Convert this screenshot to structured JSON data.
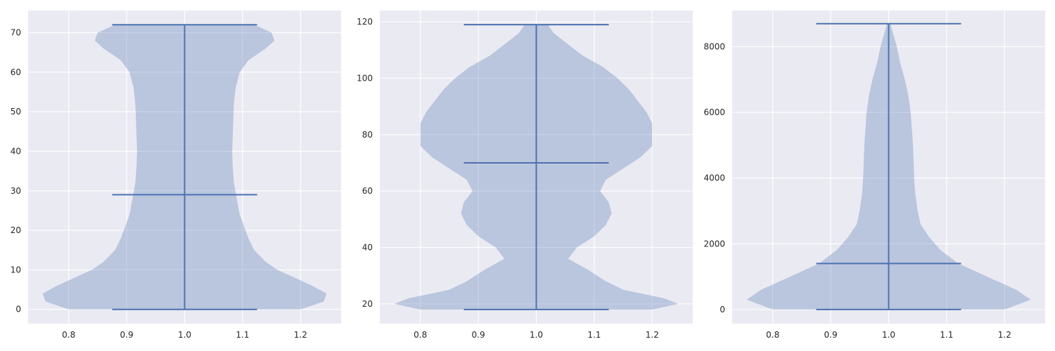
{
  "colors": {
    "axes_background": "#eaeaf2",
    "grid": "#ffffff",
    "violin": "#4c72b0",
    "text": "#262626"
  },
  "chart_data": [
    {
      "type": "violin",
      "position": 1.0,
      "xlim": [
        0.73,
        1.27
      ],
      "ylim": [
        -3.6,
        75.6
      ],
      "x_ticks": [
        "0.8",
        "0.9",
        "1.0",
        "1.1",
        "1.2"
      ],
      "y_ticks": [
        "0",
        "10",
        "20",
        "30",
        "40",
        "50",
        "60",
        "70"
      ],
      "grid": true,
      "min": 0,
      "max": 72,
      "median": 29,
      "median_shown": true,
      "density_profile": [
        [
          0,
          0.2
        ],
        [
          2,
          0.24
        ],
        [
          4,
          0.245
        ],
        [
          6,
          0.22
        ],
        [
          8,
          0.19
        ],
        [
          10,
          0.16
        ],
        [
          12,
          0.14
        ],
        [
          15,
          0.12
        ],
        [
          18,
          0.11
        ],
        [
          20,
          0.105
        ],
        [
          24,
          0.095
        ],
        [
          28,
          0.09
        ],
        [
          32,
          0.085
        ],
        [
          36,
          0.083
        ],
        [
          40,
          0.082
        ],
        [
          44,
          0.083
        ],
        [
          48,
          0.084
        ],
        [
          52,
          0.085
        ],
        [
          56,
          0.088
        ],
        [
          60,
          0.095
        ],
        [
          63,
          0.11
        ],
        [
          66,
          0.14
        ],
        [
          68,
          0.155
        ],
        [
          70,
          0.15
        ],
        [
          72,
          0.12
        ]
      ]
    },
    {
      "type": "violin",
      "position": 1.0,
      "xlim": [
        0.73,
        1.27
      ],
      "ylim": [
        13.0,
        124.0
      ],
      "x_ticks": [
        "0.8",
        "0.9",
        "1.0",
        "1.1",
        "1.2"
      ],
      "y_ticks": [
        "20",
        "40",
        "60",
        "80",
        "100",
        "120"
      ],
      "grid": true,
      "min": 18,
      "max": 119,
      "median": 70,
      "median_shown": true,
      "density_profile": [
        [
          18,
          0.2
        ],
        [
          20,
          0.245
        ],
        [
          22,
          0.22
        ],
        [
          25,
          0.15
        ],
        [
          28,
          0.12
        ],
        [
          32,
          0.09
        ],
        [
          36,
          0.055
        ],
        [
          40,
          0.07
        ],
        [
          44,
          0.1
        ],
        [
          48,
          0.12
        ],
        [
          52,
          0.13
        ],
        [
          56,
          0.125
        ],
        [
          60,
          0.11
        ],
        [
          64,
          0.12
        ],
        [
          68,
          0.15
        ],
        [
          72,
          0.18
        ],
        [
          76,
          0.2
        ],
        [
          80,
          0.2
        ],
        [
          84,
          0.2
        ],
        [
          88,
          0.19
        ],
        [
          92,
          0.175
        ],
        [
          96,
          0.16
        ],
        [
          100,
          0.14
        ],
        [
          104,
          0.115
        ],
        [
          108,
          0.08
        ],
        [
          112,
          0.055
        ],
        [
          116,
          0.03
        ],
        [
          119,
          0.02
        ]
      ]
    },
    {
      "type": "violin",
      "position": 1.0,
      "xlim": [
        0.73,
        1.27
      ],
      "ylim": [
        -430,
        9100
      ],
      "x_ticks": [
        "0.8",
        "0.9",
        "1.0",
        "1.1",
        "1.2"
      ],
      "y_ticks": [
        "0",
        "2000",
        "4000",
        "6000",
        "8000"
      ],
      "grid": true,
      "min": 0,
      "max": 8700,
      "median": 1400,
      "median_shown": true,
      "density_profile": [
        [
          0,
          0.2
        ],
        [
          300,
          0.245
        ],
        [
          600,
          0.22
        ],
        [
          1000,
          0.17
        ],
        [
          1400,
          0.12
        ],
        [
          1800,
          0.09
        ],
        [
          2200,
          0.07
        ],
        [
          2600,
          0.055
        ],
        [
          3000,
          0.05
        ],
        [
          3500,
          0.046
        ],
        [
          4000,
          0.044
        ],
        [
          4500,
          0.043
        ],
        [
          5000,
          0.042
        ],
        [
          5500,
          0.04
        ],
        [
          6000,
          0.038
        ],
        [
          6500,
          0.034
        ],
        [
          7000,
          0.028
        ],
        [
          7500,
          0.02
        ],
        [
          8000,
          0.014
        ],
        [
          8500,
          0.006
        ],
        [
          8700,
          0.003
        ]
      ]
    }
  ]
}
